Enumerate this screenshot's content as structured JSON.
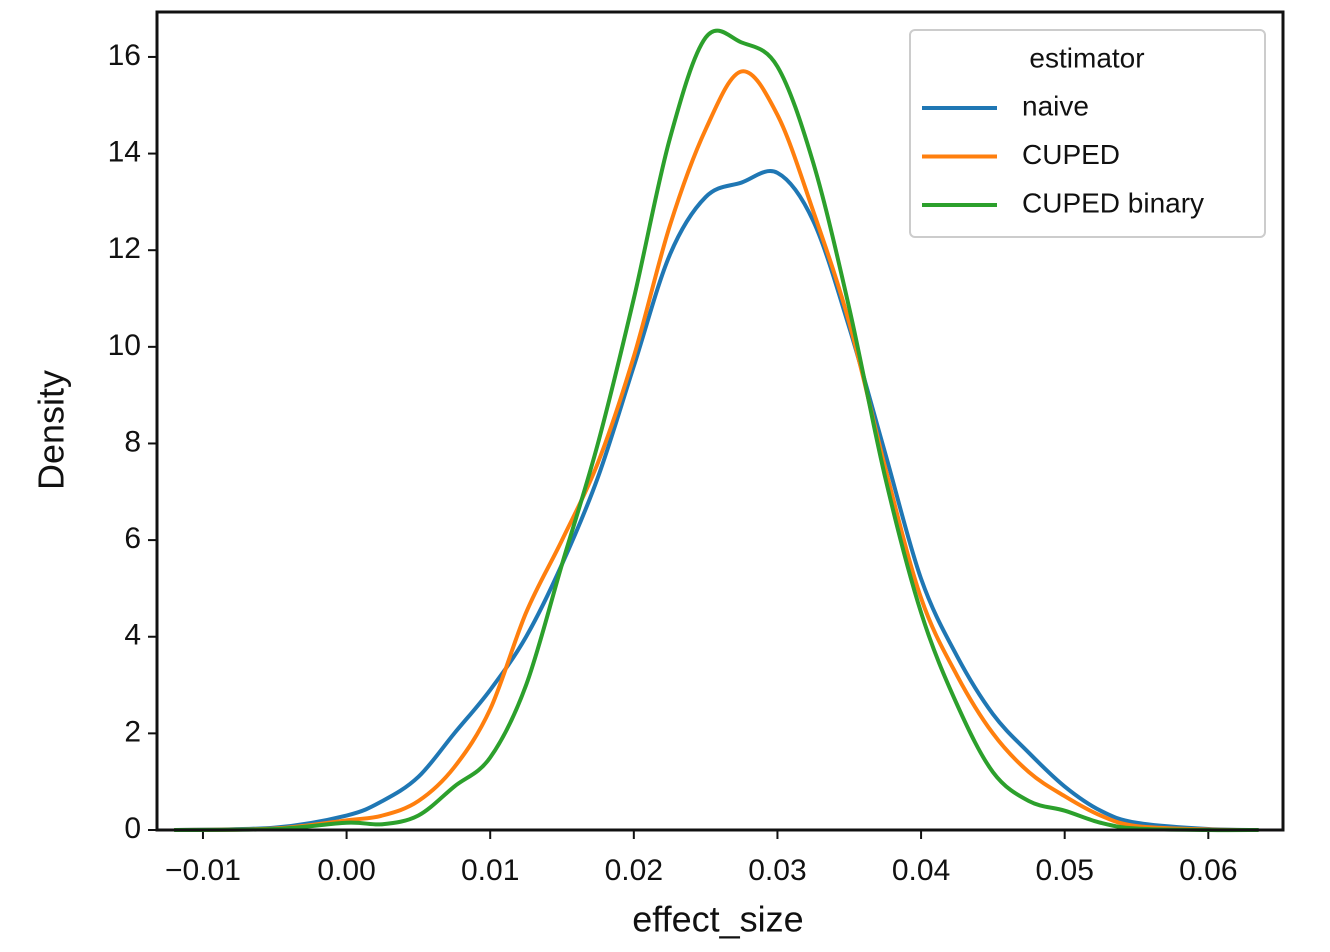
{
  "chart_data": {
    "type": "line",
    "x_label": "effect_size",
    "y_label": "Density",
    "legend_title": "estimator",
    "legend": "upper right",
    "xlim": [
      -0.0132,
      0.0652
    ],
    "ylim": [
      0,
      16.93
    ],
    "xticks": [
      {
        "value": -0.01,
        "label": "−0.01"
      },
      {
        "value": 0,
        "label": "0.00"
      },
      0.01,
      0.02,
      0.03,
      0.04,
      0.05,
      0.06
    ],
    "yticks": [
      0,
      2,
      4,
      6,
      8,
      10,
      12,
      14,
      16
    ],
    "x": [
      -0.012,
      -0.005,
      0,
      0.0025,
      0.005,
      0.0075,
      0.01,
      0.0125,
      0.015,
      0.0175,
      0.02,
      0.0225,
      0.025,
      0.0275,
      0.03,
      0.0325,
      0.035,
      0.0375,
      0.04,
      0.0425,
      0.045,
      0.0475,
      0.05,
      0.0525,
      0.055,
      0.06,
      0.0635
    ],
    "series": [
      {
        "name": "naive",
        "color": "#1f77b4",
        "values": [
          0,
          0.05,
          0.3,
          0.6,
          1.1,
          2.0,
          2.9,
          4.0,
          5.5,
          7.3,
          9.6,
          11.9,
          13.1,
          13.4,
          13.6,
          12.6,
          10.4,
          7.8,
          5.2,
          3.6,
          2.4,
          1.6,
          0.9,
          0.4,
          0.15,
          0.02,
          0
        ]
      },
      {
        "name": "CUPED",
        "color": "#ff7f0e",
        "values": [
          0,
          0.03,
          0.2,
          0.3,
          0.6,
          1.3,
          2.5,
          4.5,
          6.0,
          7.6,
          9.8,
          12.5,
          14.5,
          15.7,
          14.8,
          12.8,
          10.5,
          7.5,
          4.8,
          3.2,
          2.0,
          1.2,
          0.7,
          0.3,
          0.08,
          0.01,
          0
        ]
      },
      {
        "name": "CUPED binary",
        "color": "#2ca02c",
        "values": [
          0,
          0.02,
          0.15,
          0.12,
          0.3,
          0.9,
          1.5,
          3.0,
          5.5,
          8.0,
          11.0,
          14.3,
          16.4,
          16.3,
          15.8,
          13.8,
          10.8,
          7.3,
          4.5,
          2.6,
          1.2,
          0.6,
          0.4,
          0.15,
          0.03,
          0,
          0
        ]
      }
    ]
  }
}
